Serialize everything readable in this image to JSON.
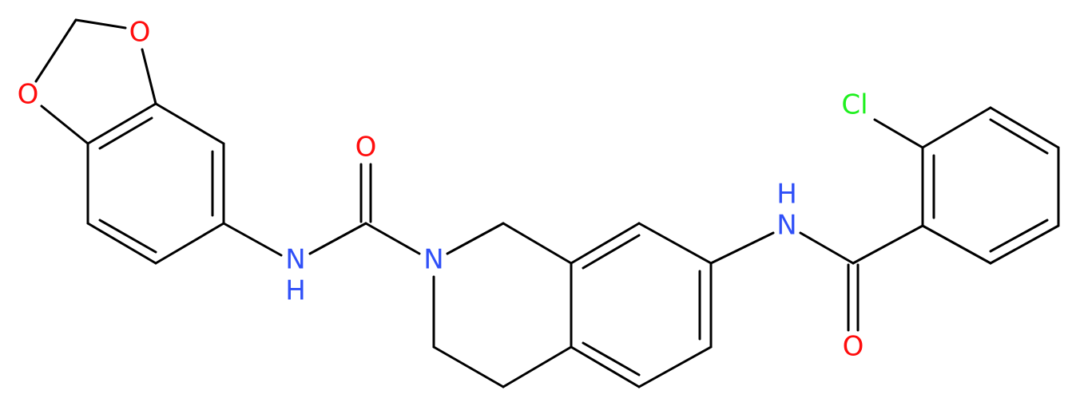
{
  "atom_labels": [
    "O",
    "O",
    "O",
    "N",
    "H",
    "N",
    "N",
    "H",
    "O",
    "Cl"
  ]
}
